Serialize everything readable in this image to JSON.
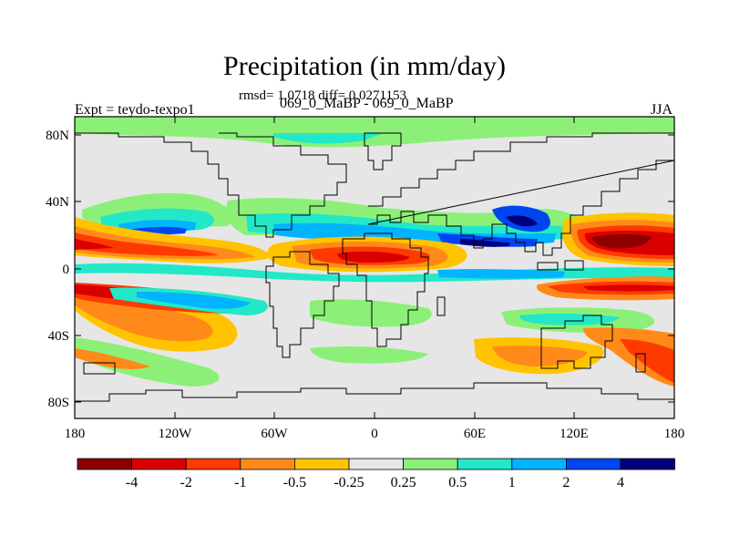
{
  "title": "Precipitation (in mm/day)",
  "stats": "rmsd= 1.0718 diff= 0.0271153",
  "expt_label": "Expt = teydo-texpo1",
  "subtitle": "069_0_MaBP - 069_0_MaBP",
  "season": "JJA",
  "map": {
    "projection": "cylindrical-equidistant",
    "lon_range": [
      -180,
      180
    ],
    "lat_range": [
      -90,
      90
    ],
    "x_ticks": [
      "180",
      "120W",
      "60W",
      "0",
      "60E",
      "120E",
      "180"
    ],
    "y_ticks": [
      "80N",
      "40N",
      "0",
      "40S",
      "80S"
    ],
    "field": "precipitation difference",
    "units": "mm/day"
  },
  "colorbar": {
    "labels": [
      "-4",
      "-2",
      "-1",
      "-0.5",
      "-0.25",
      "0.25",
      "0.5",
      "1",
      "2",
      "4"
    ],
    "colors": [
      "#8c0000",
      "#d90000",
      "#ff3a00",
      "#ff8a1a",
      "#ffc300",
      "#e6e6e6",
      "#8cf078",
      "#22e8c8",
      "#00b4ff",
      "#0046f0",
      "#00007f"
    ]
  },
  "colors": {
    "land_outline": "#000000",
    "background": "#ffffff"
  }
}
